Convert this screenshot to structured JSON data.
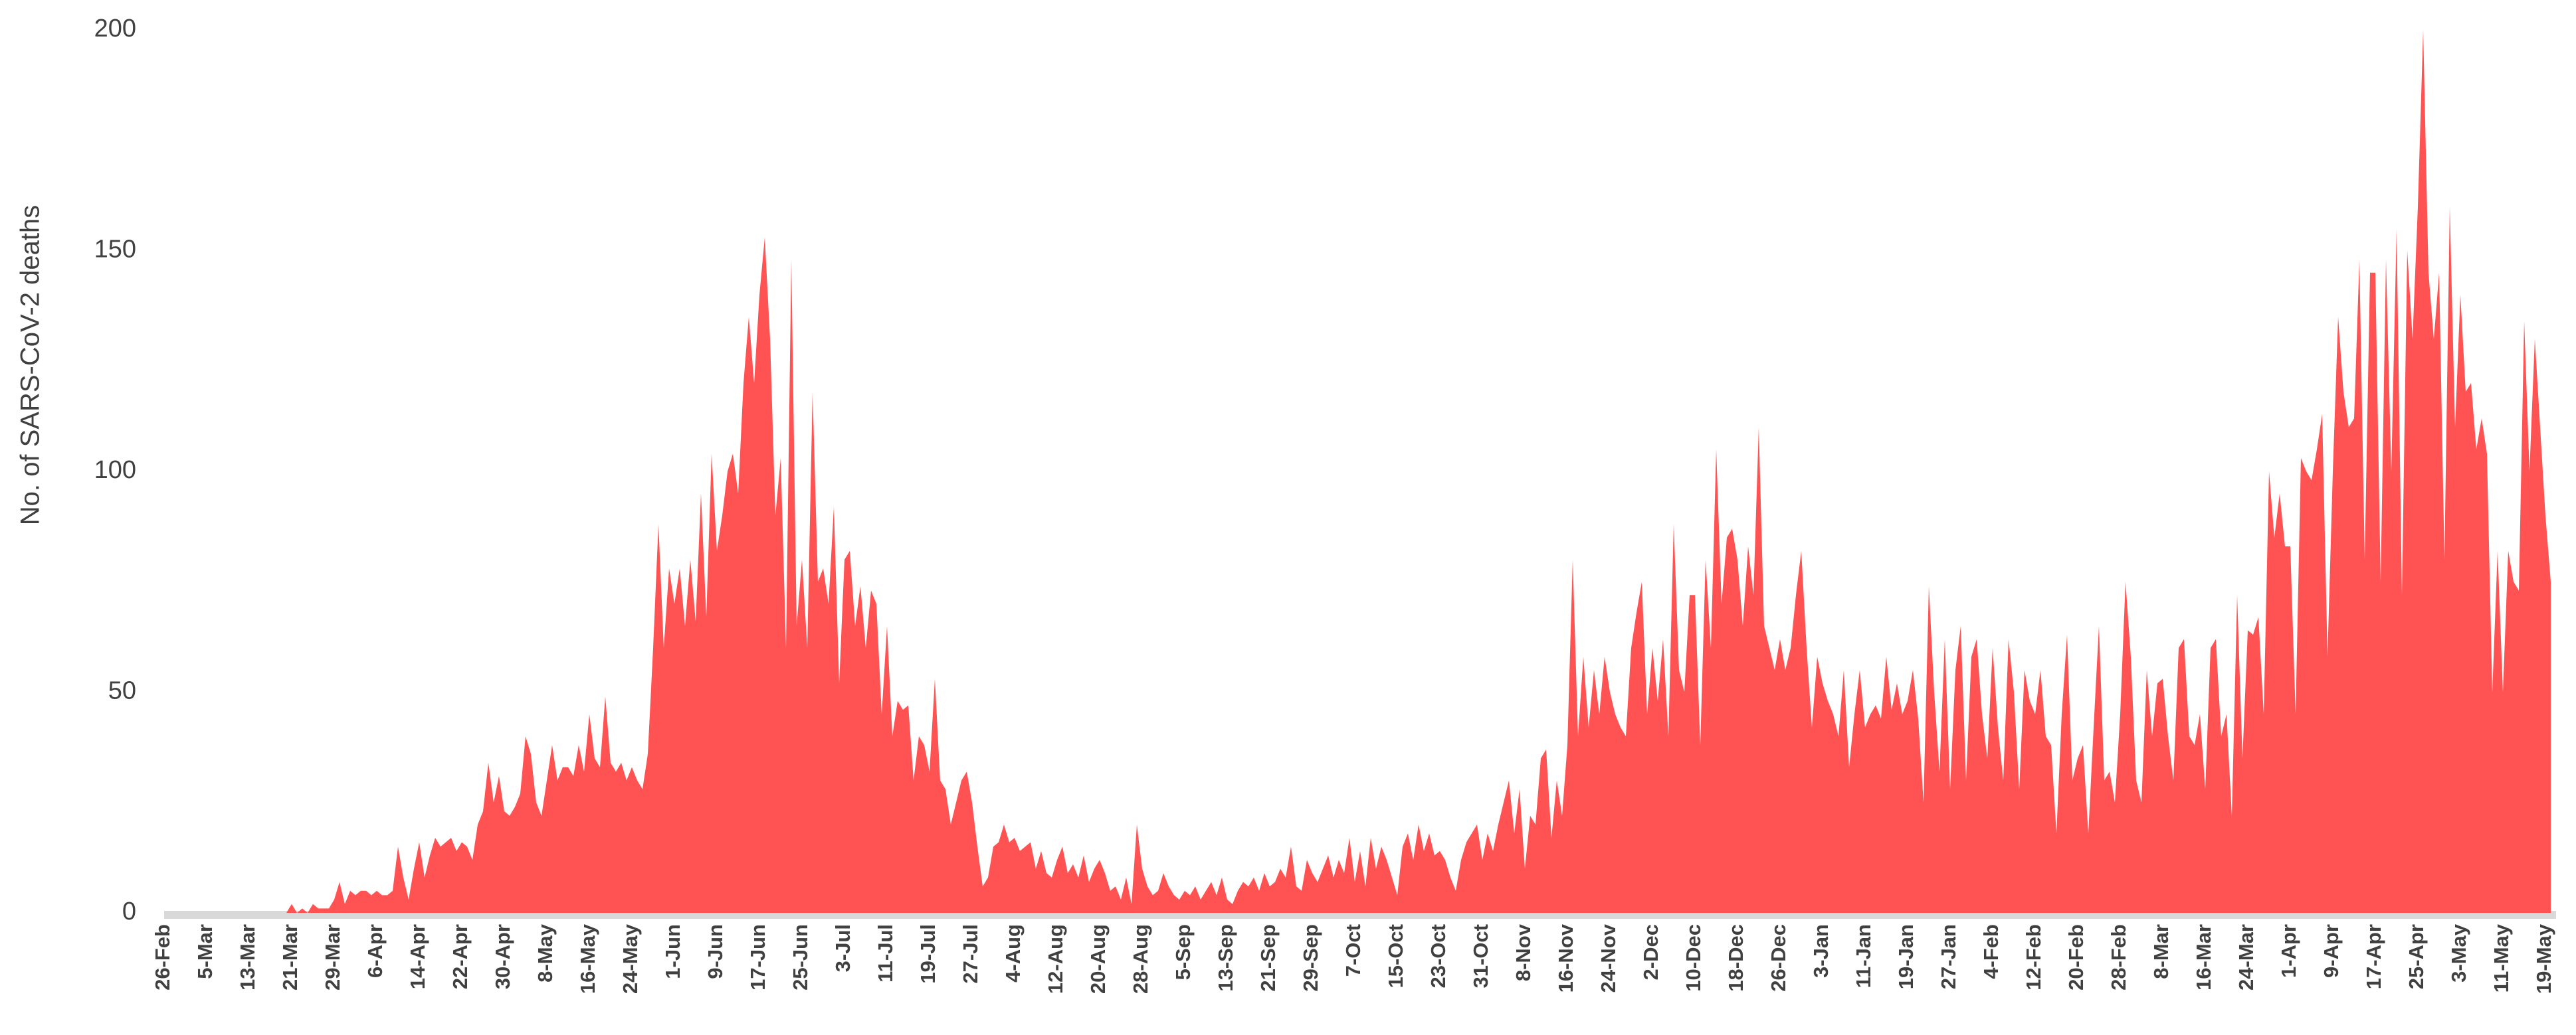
{
  "chart_data": {
    "type": "area",
    "ylabel": "No. of SARS-CoV-2 deaths",
    "color": "#ff5353",
    "ylim": [
      0,
      200
    ],
    "yticks": [
      0,
      50,
      100,
      150,
      200
    ],
    "grid": false,
    "categories": [
      "26-Feb",
      null,
      null,
      null,
      null,
      null,
      null,
      null,
      "5-Mar",
      null,
      null,
      null,
      null,
      null,
      null,
      null,
      "13-Mar",
      null,
      null,
      null,
      null,
      null,
      null,
      null,
      "21-Mar",
      null,
      null,
      null,
      null,
      null,
      null,
      null,
      "29-Mar",
      null,
      null,
      null,
      null,
      null,
      null,
      null,
      "6-Apr",
      null,
      null,
      null,
      null,
      null,
      null,
      null,
      "14-Apr",
      null,
      null,
      null,
      null,
      null,
      null,
      null,
      "22-Apr",
      null,
      null,
      null,
      null,
      null,
      null,
      null,
      "30-Apr",
      null,
      null,
      null,
      null,
      null,
      null,
      null,
      "8-May",
      null,
      null,
      null,
      null,
      null,
      null,
      null,
      "16-May",
      null,
      null,
      null,
      null,
      null,
      null,
      null,
      "24-May",
      null,
      null,
      null,
      null,
      null,
      null,
      null,
      "1-Jun",
      null,
      null,
      null,
      null,
      null,
      null,
      null,
      "9-Jun",
      null,
      null,
      null,
      null,
      null,
      null,
      null,
      "17-Jun",
      null,
      null,
      null,
      null,
      null,
      null,
      null,
      "25-Jun",
      null,
      null,
      null,
      null,
      null,
      null,
      null,
      "3-Jul",
      null,
      null,
      null,
      null,
      null,
      null,
      null,
      "11-Jul",
      null,
      null,
      null,
      null,
      null,
      null,
      null,
      "19-Jul",
      null,
      null,
      null,
      null,
      null,
      null,
      null,
      "27-Jul",
      null,
      null,
      null,
      null,
      null,
      null,
      null,
      "4-Aug",
      null,
      null,
      null,
      null,
      null,
      null,
      null,
      "12-Aug",
      null,
      null,
      null,
      null,
      null,
      null,
      null,
      "20-Aug",
      null,
      null,
      null,
      null,
      null,
      null,
      null,
      "28-Aug",
      null,
      null,
      null,
      null,
      null,
      null,
      null,
      "5-Sep",
      null,
      null,
      null,
      null,
      null,
      null,
      null,
      "13-Sep",
      null,
      null,
      null,
      null,
      null,
      null,
      null,
      "21-Sep",
      null,
      null,
      null,
      null,
      null,
      null,
      null,
      "29-Sep",
      null,
      null,
      null,
      null,
      null,
      null,
      null,
      "7-Oct",
      null,
      null,
      null,
      null,
      null,
      null,
      null,
      "15-Oct",
      null,
      null,
      null,
      null,
      null,
      null,
      null,
      "23-Oct",
      null,
      null,
      null,
      null,
      null,
      null,
      null,
      "31-Oct",
      null,
      null,
      null,
      null,
      null,
      null,
      null,
      "8-Nov",
      null,
      null,
      null,
      null,
      null,
      null,
      null,
      "16-Nov",
      null,
      null,
      null,
      null,
      null,
      null,
      null,
      "24-Nov",
      null,
      null,
      null,
      null,
      null,
      null,
      null,
      "2-Dec",
      null,
      null,
      null,
      null,
      null,
      null,
      null,
      "10-Dec",
      null,
      null,
      null,
      null,
      null,
      null,
      null,
      "18-Dec",
      null,
      null,
      null,
      null,
      null,
      null,
      null,
      "26-Dec",
      null,
      null,
      null,
      null,
      null,
      null,
      null,
      "3-Jan",
      null,
      null,
      null,
      null,
      null,
      null,
      null,
      "11-Jan",
      null,
      null,
      null,
      null,
      null,
      null,
      null,
      "19-Jan",
      null,
      null,
      null,
      null,
      null,
      null,
      null,
      "27-Jan",
      null,
      null,
      null,
      null,
      null,
      null,
      null,
      "4-Feb",
      null,
      null,
      null,
      null,
      null,
      null,
      null,
      "12-Feb",
      null,
      null,
      null,
      null,
      null,
      null,
      null,
      "20-Feb",
      null,
      null,
      null,
      null,
      null,
      null,
      null,
      "28-Feb",
      null,
      null,
      null,
      null,
      null,
      null,
      null,
      "8-Mar",
      null,
      null,
      null,
      null,
      null,
      null,
      null,
      "16-Mar",
      null,
      null,
      null,
      null,
      null,
      null,
      null,
      "24-Mar",
      null,
      null,
      null,
      null,
      null,
      null,
      null,
      "1-Apr",
      null,
      null,
      null,
      null,
      null,
      null,
      null,
      "9-Apr",
      null,
      null,
      null,
      null,
      null,
      null,
      null,
      "17-Apr",
      null,
      null,
      null,
      null,
      null,
      null,
      null,
      "25-Apr",
      null,
      null,
      null,
      null,
      null,
      null,
      null,
      "3-May",
      null,
      null,
      null,
      null,
      null,
      null,
      null,
      "11-May",
      null,
      null,
      null,
      null,
      null,
      null,
      null,
      "19-May",
      null
    ],
    "values": [
      0,
      0,
      0,
      0,
      0,
      0,
      0,
      0,
      0,
      0,
      0,
      0,
      0,
      0,
      0,
      0,
      0,
      0,
      0,
      0,
      0,
      0,
      0,
      0,
      2,
      0,
      1,
      0,
      2,
      1,
      1,
      1,
      3,
      7,
      2,
      5,
      4,
      5,
      5,
      4,
      5,
      4,
      4,
      5,
      15,
      8,
      3,
      10,
      16,
      8,
      13,
      17,
      15,
      16,
      17,
      14,
      16,
      15,
      12,
      20,
      23,
      34,
      25,
      31,
      23,
      22,
      24,
      27,
      40,
      36,
      25,
      22,
      30,
      38,
      30,
      33,
      33,
      31,
      38,
      32,
      45,
      35,
      33,
      49,
      34,
      32,
      34,
      30,
      33,
      30,
      28,
      36,
      60,
      88,
      60,
      78,
      70,
      78,
      65,
      80,
      66,
      95,
      67,
      104,
      82,
      90,
      100,
      104,
      95,
      120,
      135,
      120,
      140,
      153,
      130,
      90,
      103,
      60,
      148,
      65,
      80,
      60,
      118,
      75,
      78,
      70,
      92,
      52,
      80,
      82,
      65,
      74,
      60,
      73,
      70,
      45,
      65,
      40,
      48,
      46,
      47,
      30,
      40,
      38,
      32,
      53,
      30,
      28,
      20,
      25,
      30,
      32,
      25,
      15,
      6,
      8,
      15,
      16,
      20,
      16,
      17,
      14,
      15,
      16,
      10,
      14,
      9,
      8,
      12,
      15,
      9,
      11,
      8,
      13,
      7,
      10,
      12,
      9,
      5,
      6,
      3,
      8,
      2,
      20,
      10,
      6,
      4,
      5,
      9,
      6,
      4,
      3,
      5,
      4,
      6,
      3,
      5,
      7,
      4,
      8,
      3,
      2,
      5,
      7,
      6,
      8,
      5,
      9,
      6,
      7,
      10,
      8,
      15,
      6,
      5,
      12,
      9,
      7,
      10,
      13,
      8,
      12,
      9,
      17,
      7,
      14,
      6,
      17,
      10,
      15,
      12,
      8,
      4,
      15,
      18,
      12,
      20,
      14,
      18,
      13,
      14,
      12,
      8,
      5,
      12,
      16,
      18,
      20,
      12,
      18,
      14,
      20,
      25,
      30,
      18,
      28,
      10,
      22,
      20,
      35,
      37,
      17,
      30,
      22,
      38,
      80,
      40,
      58,
      42,
      55,
      45,
      58,
      50,
      45,
      42,
      40,
      60,
      68,
      75,
      45,
      60,
      48,
      62,
      40,
      88,
      55,
      50,
      72,
      72,
      38,
      80,
      60,
      105,
      70,
      85,
      87,
      80,
      65,
      83,
      72,
      110,
      65,
      60,
      55,
      62,
      55,
      60,
      72,
      82,
      60,
      42,
      58,
      52,
      48,
      45,
      40,
      55,
      33,
      45,
      55,
      42,
      45,
      47,
      44,
      58,
      46,
      52,
      45,
      48,
      55,
      44,
      25,
      74,
      50,
      32,
      62,
      28,
      55,
      65,
      30,
      58,
      62,
      45,
      35,
      60,
      42,
      30,
      62,
      50,
      28,
      55,
      48,
      45,
      55,
      40,
      38,
      18,
      45,
      63,
      30,
      35,
      38,
      18,
      42,
      65,
      30,
      32,
      25,
      45,
      75,
      58,
      30,
      25,
      55,
      40,
      52,
      53,
      40,
      30,
      60,
      62,
      40,
      38,
      45,
      28,
      60,
      62,
      40,
      45,
      22,
      72,
      35,
      64,
      63,
      67,
      45,
      100,
      85,
      95,
      83,
      83,
      45,
      103,
      100,
      98,
      105,
      113,
      58,
      100,
      135,
      118,
      110,
      112,
      148,
      80,
      145,
      145,
      75,
      148,
      100,
      155,
      72,
      150,
      130,
      160,
      200,
      145,
      130,
      145,
      80,
      160,
      110,
      140,
      118,
      120,
      105,
      112,
      104,
      50,
      82,
      50,
      82,
      75,
      73,
      134,
      100,
      130,
      110,
      90,
      75
    ]
  }
}
